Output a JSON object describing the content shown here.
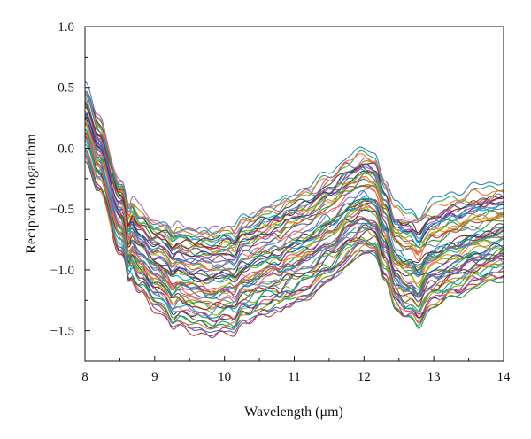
{
  "chart_data": {
    "type": "line",
    "title": "",
    "xlabel": "Wavelength (μm)",
    "ylabel": "Reciprocal logarithm",
    "xlim": [
      8,
      14
    ],
    "ylim": [
      -1.75,
      1.0
    ],
    "xticks": [
      8,
      9,
      10,
      11,
      12,
      13,
      14
    ],
    "yticks": [
      -1.5,
      -1.0,
      -0.5,
      0.0,
      0.5,
      1.0
    ],
    "xtick_labels": [
      "8",
      "9",
      "10",
      "11",
      "12",
      "13",
      "14"
    ],
    "ytick_labels": [
      "−1.5",
      "−1.0",
      "−0.5",
      "0.0",
      "0.5",
      "1.0"
    ],
    "grid": false,
    "legend": "none",
    "series_count": 60,
    "series_colors": [
      "#3a6fb0",
      "#c0392b",
      "#2ca02c",
      "#8e44ad",
      "#e67e22",
      "#16a085",
      "#d4a017",
      "#1f3d99",
      "#e84393",
      "#6d4c41",
      "#7fb800",
      "#00a8c6",
      "#9b2226",
      "#5b7fd6",
      "#b8860b",
      "#34495e",
      "#27ae60",
      "#a569bd",
      "#ff6f3c",
      "#2e86c1"
    ],
    "base_curve": {
      "x": [
        8.0,
        8.2,
        8.5,
        8.8,
        9.0,
        9.3,
        9.6,
        9.8,
        10.0,
        10.3,
        10.6,
        10.9,
        11.2,
        11.5,
        11.8,
        12.0,
        12.15,
        12.3,
        12.45,
        12.6,
        12.8,
        13.0,
        13.3,
        13.6,
        14.0
      ],
      "y": [
        0.2,
        -0.05,
        -0.55,
        -0.83,
        -0.95,
        -1.03,
        -1.08,
        -1.1,
        -1.07,
        -1.0,
        -0.92,
        -0.85,
        -0.78,
        -0.66,
        -0.52,
        -0.46,
        -0.48,
        -0.68,
        -0.92,
        -0.98,
        -0.95,
        -0.9,
        -0.82,
        -0.76,
        -0.7
      ]
    },
    "spread": {
      "x": [
        8.0,
        8.3,
        8.8,
        9.3,
        9.8,
        10.4,
        11.0,
        11.6,
        12.0,
        12.3,
        12.6,
        13.0,
        13.5,
        14.0
      ],
      "y": [
        0.55,
        0.55,
        0.65,
        0.8,
        0.85,
        0.85,
        0.88,
        0.85,
        0.8,
        0.75,
        0.82,
        0.78,
        0.72,
        0.66
      ]
    },
    "features": [
      {
        "center": 8.62,
        "width": 0.04,
        "depth": 0.13
      },
      {
        "center": 9.25,
        "width": 0.05,
        "depth": 0.04
      },
      {
        "center": 10.15,
        "width": 0.06,
        "depth": 0.05
      },
      {
        "center": 10.8,
        "width": 0.06,
        "depth": 0.04
      },
      {
        "center": 12.78,
        "width": 0.07,
        "depth": 0.08
      }
    ]
  }
}
